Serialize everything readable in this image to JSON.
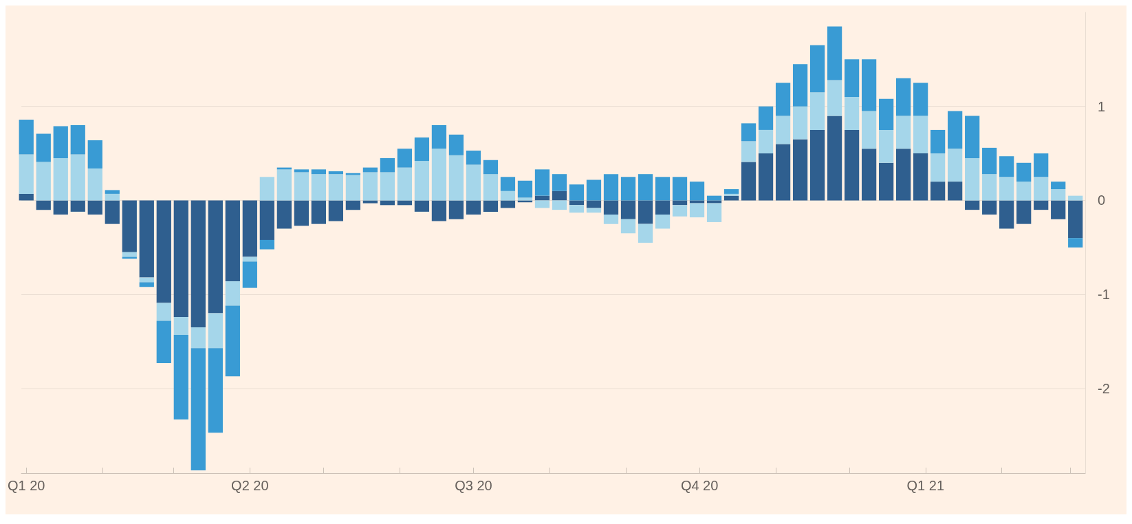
{
  "chart_data": {
    "type": "bar",
    "stacked": true,
    "x": [
      "2020-01-01",
      "2020-01-08",
      "2020-01-15",
      "2020-01-22",
      "2020-01-29",
      "2020-02-05",
      "2020-02-12",
      "2020-02-19",
      "2020-02-26",
      "2020-03-04",
      "2020-03-11",
      "2020-03-18",
      "2020-03-25",
      "2020-04-01",
      "2020-04-08",
      "2020-04-15",
      "2020-04-22",
      "2020-04-29",
      "2020-05-06",
      "2020-05-13",
      "2020-05-20",
      "2020-05-27",
      "2020-06-03",
      "2020-06-10",
      "2020-06-17",
      "2020-06-24",
      "2020-07-01",
      "2020-07-08",
      "2020-07-15",
      "2020-07-22",
      "2020-07-29",
      "2020-08-05",
      "2020-08-12",
      "2020-08-19",
      "2020-08-26",
      "2020-09-02",
      "2020-09-09",
      "2020-09-16",
      "2020-09-23",
      "2020-09-30",
      "2020-10-07",
      "2020-10-14",
      "2020-10-21",
      "2020-10-28",
      "2020-11-04",
      "2020-11-11",
      "2020-11-18",
      "2020-11-25",
      "2020-12-02",
      "2020-12-09",
      "2020-12-16",
      "2020-12-23",
      "2020-12-30",
      "2021-01-06",
      "2021-01-13",
      "2021-01-20",
      "2021-01-27",
      "2021-02-03",
      "2021-02-10",
      "2021-02-17",
      "2021-02-24",
      "2021-03-03"
    ],
    "series": [
      {
        "color": "#2f5f8f",
        "values": [
          0.07,
          -0.1,
          -0.15,
          -0.12,
          -0.15,
          -0.25,
          -0.55,
          -0.82,
          -1.09,
          -1.24,
          -1.35,
          -1.2,
          -0.86,
          -0.6,
          -0.42,
          -0.3,
          -0.27,
          -0.25,
          -0.22,
          -0.1,
          -0.03,
          -0.05,
          -0.05,
          -0.12,
          -0.22,
          -0.2,
          -0.15,
          -0.12,
          -0.08,
          -0.02,
          0.05,
          0.1,
          -0.05,
          -0.08,
          -0.15,
          -0.2,
          -0.25,
          -0.15,
          -0.05,
          -0.03,
          -0.03,
          0.05,
          0.41,
          0.5,
          0.6,
          0.65,
          0.75,
          0.9,
          0.75,
          0.55,
          0.4,
          0.55,
          0.5,
          0.2,
          0.2,
          -0.1,
          -0.15,
          -0.3,
          -0.25,
          -0.1,
          -0.2,
          -0.4
        ]
      },
      {
        "color": "#a5d6ea",
        "values": [
          0.42,
          0.41,
          0.45,
          0.49,
          0.34,
          0.07,
          -0.05,
          -0.05,
          -0.19,
          -0.19,
          -0.22,
          -0.37,
          -0.26,
          -0.05,
          0.25,
          0.33,
          0.3,
          0.28,
          0.28,
          0.27,
          0.3,
          0.3,
          0.35,
          0.42,
          0.55,
          0.48,
          0.38,
          0.28,
          0.1,
          0.03,
          -0.08,
          -0.1,
          -0.08,
          -0.05,
          -0.1,
          -0.15,
          -0.2,
          -0.15,
          -0.12,
          -0.15,
          -0.2,
          0.02,
          0.22,
          0.25,
          0.3,
          0.35,
          0.4,
          0.38,
          0.35,
          0.4,
          0.35,
          0.35,
          0.4,
          0.3,
          0.35,
          0.45,
          0.28,
          0.25,
          0.2,
          0.25,
          0.12,
          0.05
        ]
      },
      {
        "color": "#399bd4",
        "values": [
          0.37,
          0.3,
          0.34,
          0.31,
          0.3,
          0.04,
          -0.02,
          -0.05,
          -0.45,
          -0.9,
          -1.3,
          -0.9,
          -0.75,
          -0.28,
          -0.1,
          0.02,
          0.03,
          0.05,
          0.03,
          0.02,
          0.05,
          0.15,
          0.2,
          0.25,
          0.25,
          0.22,
          0.15,
          0.15,
          0.15,
          0.18,
          0.28,
          0.18,
          0.17,
          0.22,
          0.28,
          0.25,
          0.28,
          0.25,
          0.25,
          0.2,
          0.05,
          0.05,
          0.19,
          0.25,
          0.35,
          0.45,
          0.5,
          0.57,
          0.4,
          0.55,
          0.33,
          0.4,
          0.35,
          0.25,
          0.4,
          0.45,
          0.28,
          0.22,
          0.2,
          0.25,
          0.08,
          -0.1
        ]
      }
    ],
    "xlim": [
      "2019-12-30",
      "2021-03-07"
    ],
    "xticks": [
      {
        "value": "2020-01-01",
        "label": "Q1 20"
      },
      {
        "value": "2020-02-01",
        "label": null
      },
      {
        "value": "2020-03-01",
        "label": null
      },
      {
        "value": "2020-04-01",
        "label": "Q2 20"
      },
      {
        "value": "2020-05-01",
        "label": null
      },
      {
        "value": "2020-06-01",
        "label": null
      },
      {
        "value": "2020-07-01",
        "label": "Q3 20"
      },
      {
        "value": "2020-08-01",
        "label": null
      },
      {
        "value": "2020-09-01",
        "label": null
      },
      {
        "value": "2020-10-01",
        "label": "Q4 20"
      },
      {
        "value": "2020-11-01",
        "label": null
      },
      {
        "value": "2020-12-01",
        "label": null
      },
      {
        "value": "2021-01-01",
        "label": "Q1 21"
      },
      {
        "value": "2021-02-01",
        "label": null
      },
      {
        "value": "2021-03-01",
        "label": null
      }
    ],
    "ylim": [
      -2.9,
      2
    ],
    "yticks": [
      -2,
      -1,
      0,
      1
    ],
    "grid": "y"
  }
}
